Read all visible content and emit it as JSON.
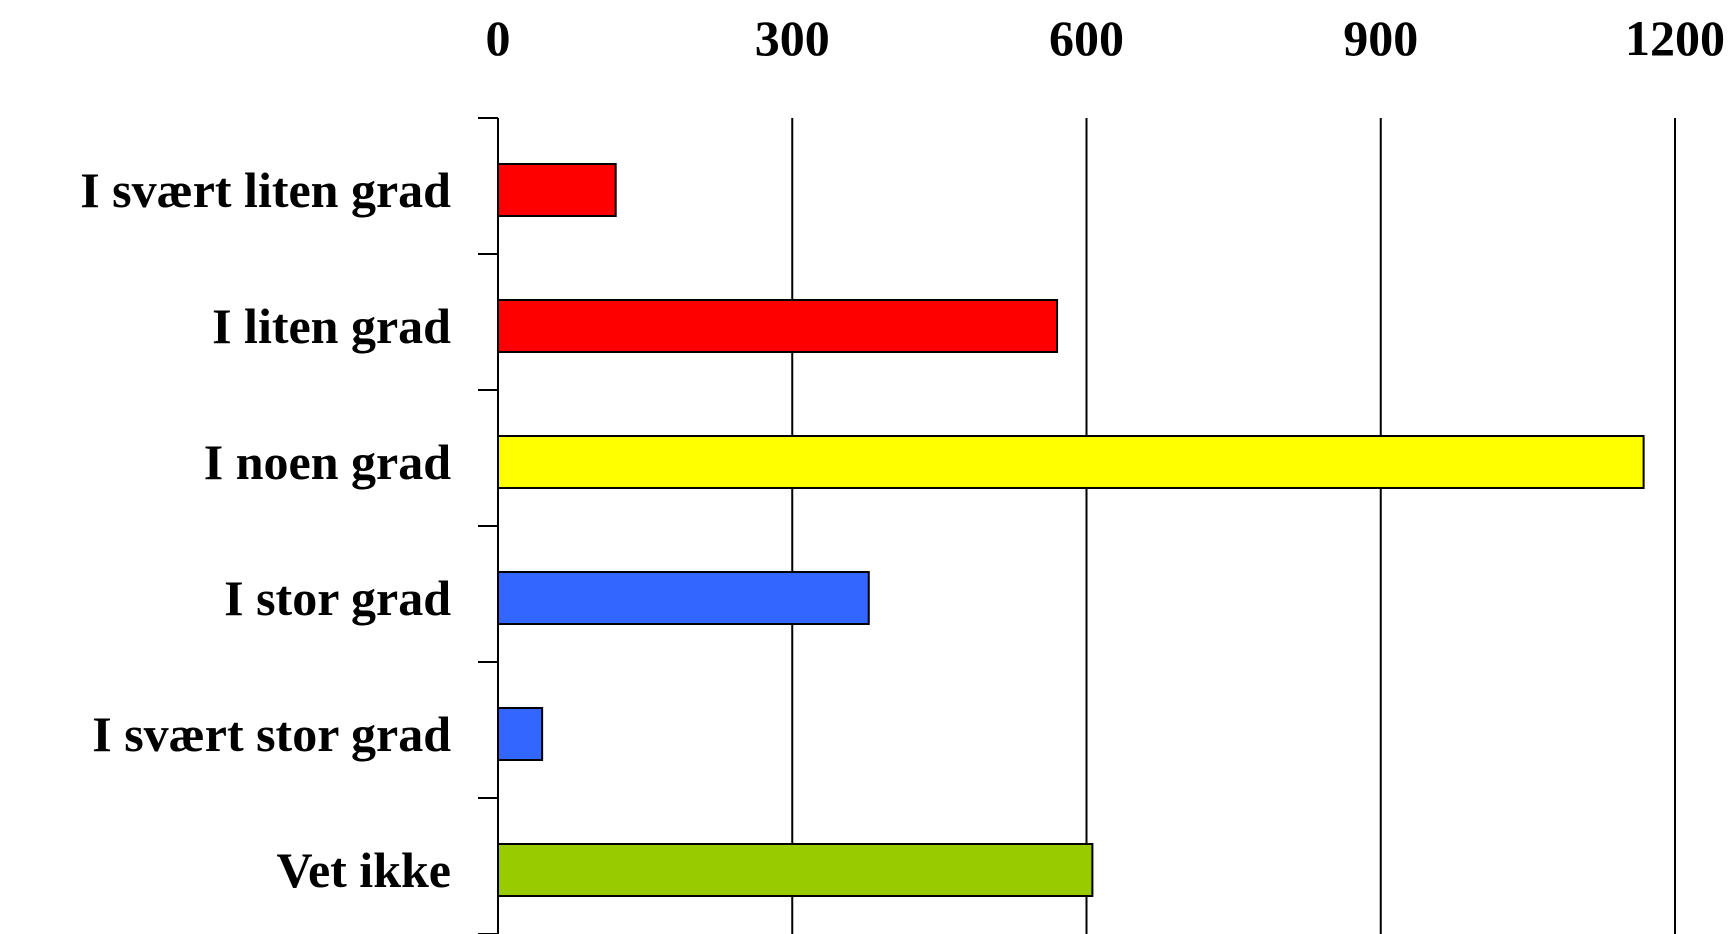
{
  "chart_data": {
    "type": "bar",
    "orientation": "horizontal",
    "categories": [
      "I svært liten grad",
      "I liten grad",
      "I noen grad",
      "I stor grad",
      "I svært stor grad",
      "Vet ikke"
    ],
    "values": [
      120,
      570,
      1168,
      378,
      45,
      606
    ],
    "colors": [
      "#ff0000",
      "#ff0000",
      "#ffff00",
      "#3366ff",
      "#3366ff",
      "#99cc00"
    ],
    "xlim": [
      0,
      1200
    ],
    "xticks": [
      "0",
      "300",
      "600",
      "900",
      "1200"
    ],
    "xtick_values": [
      0,
      300,
      600,
      900,
      1200
    ],
    "xaxis_position": "top",
    "grid": true
  }
}
